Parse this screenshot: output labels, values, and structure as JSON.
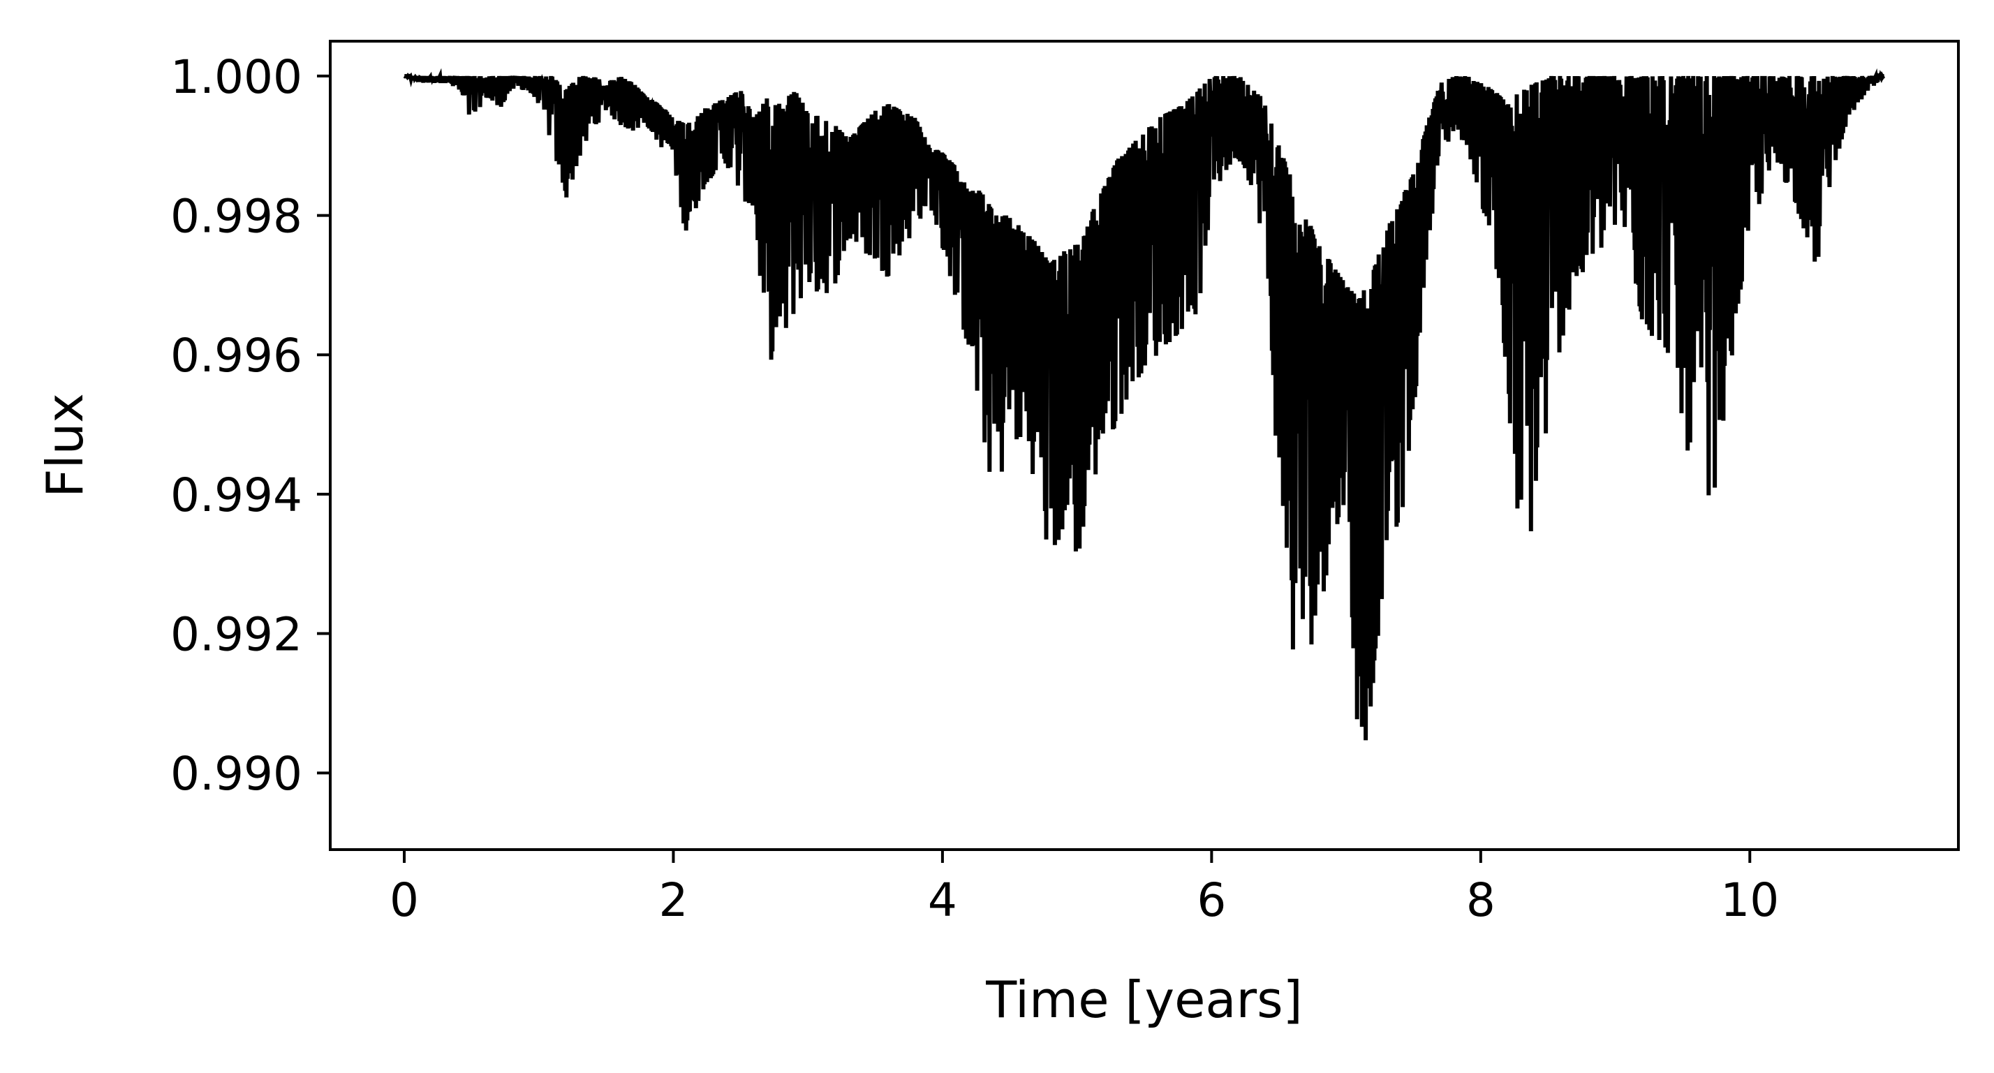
{
  "chart_data": {
    "type": "line",
    "title": "",
    "xlabel": "Time [years]",
    "ylabel": "Flux",
    "xlim": [
      -0.55,
      11.55
    ],
    "ylim": [
      0.9889,
      1.0005
    ],
    "xticks": [
      0,
      2,
      4,
      6,
      8,
      10
    ],
    "xtick_labels": [
      "0",
      "2",
      "4",
      "6",
      "8",
      "10"
    ],
    "yticks": [
      0.99,
      0.992,
      0.994,
      0.996,
      0.998,
      1.0
    ],
    "ytick_labels": [
      "0.990",
      "0.992",
      "0.994",
      "0.996",
      "0.998",
      "1.000"
    ],
    "grid": false,
    "legend": "none",
    "series": [
      {
        "color": "#000000",
        "x": [
          0.0,
          0.1,
          0.2,
          0.3,
          0.4,
          0.5,
          0.6,
          0.7,
          0.8,
          0.9,
          1.0,
          1.1,
          1.2,
          1.3,
          1.4,
          1.5,
          1.6,
          1.7,
          1.8,
          1.9,
          2.0,
          2.1,
          2.2,
          2.3,
          2.4,
          2.5,
          2.6,
          2.7,
          2.8,
          2.9,
          3.0,
          3.1,
          3.2,
          3.3,
          3.4,
          3.5,
          3.6,
          3.7,
          3.8,
          3.9,
          4.0,
          4.1,
          4.2,
          4.3,
          4.4,
          4.5,
          4.6,
          4.7,
          4.8,
          4.9,
          5.0,
          5.1,
          5.2,
          5.3,
          5.4,
          5.5,
          5.6,
          5.7,
          5.8,
          5.9,
          6.0,
          6.1,
          6.2,
          6.3,
          6.4,
          6.5,
          6.6,
          6.7,
          6.8,
          6.9,
          7.0,
          7.1,
          7.2,
          7.3,
          7.4,
          7.5,
          7.6,
          7.7,
          7.8,
          7.9,
          8.0,
          8.1,
          8.2,
          8.3,
          8.4,
          8.5,
          8.6,
          8.7,
          8.8,
          8.9,
          9.0,
          9.1,
          9.2,
          9.3,
          9.4,
          9.5,
          9.6,
          9.7,
          9.8,
          9.9,
          10.0,
          10.1,
          10.2,
          10.3,
          10.4,
          10.5,
          10.6,
          10.7,
          10.8,
          10.9,
          11.0
        ],
        "lower": [
          1.0,
          0.9999,
          0.9999,
          0.9999,
          0.9998,
          0.9993,
          0.9997,
          0.9995,
          0.9998,
          0.9998,
          0.9996,
          0.999,
          0.9982,
          0.9988,
          0.9992,
          0.9995,
          0.9993,
          0.9992,
          0.9993,
          0.999,
          0.9988,
          0.9976,
          0.9983,
          0.9986,
          0.9987,
          0.9983,
          0.998,
          0.9959,
          0.996,
          0.9966,
          0.997,
          0.9968,
          0.997,
          0.9976,
          0.9975,
          0.9973,
          0.9971,
          0.9975,
          0.9978,
          0.9982,
          0.9975,
          0.9968,
          0.996,
          0.9948,
          0.9938,
          0.995,
          0.9945,
          0.9942,
          0.9929,
          0.9935,
          0.993,
          0.994,
          0.9946,
          0.995,
          0.9955,
          0.9958,
          0.996,
          0.9962,
          0.9964,
          0.9966,
          0.9982,
          0.9986,
          0.9988,
          0.9984,
          0.9975,
          0.994,
          0.9917,
          0.9915,
          0.9923,
          0.9932,
          0.994,
          0.9898,
          0.9912,
          0.9932,
          0.9935,
          0.995,
          0.9975,
          0.9988,
          0.9992,
          0.999,
          0.9982,
          0.9975,
          0.995,
          0.9932,
          0.9935,
          0.995,
          0.9962,
          0.9968,
          0.9972,
          0.9975,
          0.9978,
          0.9976,
          0.9964,
          0.9962,
          0.996,
          0.995,
          0.994,
          0.9935,
          0.995,
          0.9964,
          0.9978,
          0.9983,
          0.9986,
          0.9984,
          0.9978,
          0.9972,
          0.9985,
          0.9992,
          0.9996,
          0.9998,
          1.0
        ],
        "upper": [
          1.0,
          1.0,
          1.0,
          1.0,
          1.0,
          1.0,
          1.0,
          1.0,
          1.0,
          1.0,
          1.0,
          1.0,
          0.9998,
          1.0,
          1.0,
          0.9999,
          1.0,
          0.9999,
          0.9997,
          0.9996,
          0.9994,
          0.9993,
          0.9995,
          0.9996,
          0.9997,
          0.9998,
          0.9994,
          0.9997,
          0.9996,
          0.9998,
          0.9995,
          0.9994,
          0.9993,
          0.9991,
          0.9993,
          0.9995,
          0.9996,
          0.9995,
          0.9994,
          0.999,
          0.9989,
          0.9987,
          0.9985,
          0.9983,
          0.998,
          0.998,
          0.9978,
          0.9976,
          0.9973,
          0.9975,
          0.9976,
          0.998,
          0.9984,
          0.9988,
          0.999,
          0.9992,
          0.9994,
          0.9995,
          0.9996,
          0.9998,
          1.0,
          1.0,
          1.0,
          0.9999,
          0.9996,
          0.999,
          0.9985,
          0.998,
          0.9976,
          0.9973,
          0.997,
          0.9968,
          0.9972,
          0.9978,
          0.9982,
          0.9986,
          0.9993,
          0.9999,
          1.0,
          1.0,
          0.9999,
          0.9998,
          0.9996,
          0.9998,
          0.9999,
          1.0,
          1.0,
          1.0,
          1.0,
          1.0,
          1.0,
          1.0,
          1.0,
          1.0,
          1.0,
          1.0,
          1.0,
          1.0,
          1.0,
          1.0,
          1.0,
          1.0,
          1.0,
          1.0,
          1.0,
          1.0,
          1.0,
          1.0,
          1.0,
          1.0,
          1.0
        ]
      }
    ]
  }
}
